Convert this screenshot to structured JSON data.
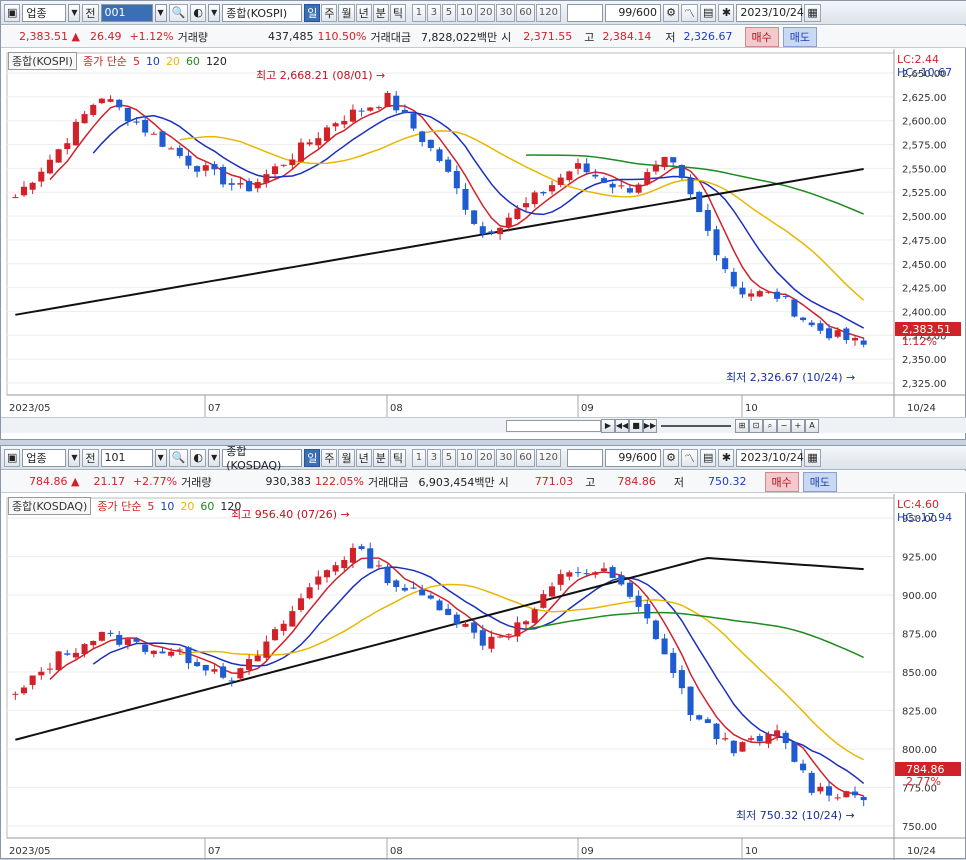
{
  "colors": {
    "up": "#d1222a",
    "down": "#1f5bd1",
    "ma5": "#d1222a",
    "ma10": "#1b2fbf",
    "ma20": "#e8b800",
    "ma60": "#1f8a1f",
    "ma120": "#111111"
  },
  "top": {
    "toolbar": {
      "market_type": "업종",
      "jeon": "전",
      "code": "001",
      "name": "종합(KOSPI)",
      "periods": [
        "일",
        "주",
        "월",
        "년",
        "분",
        "틱"
      ],
      "minutes": [
        "1",
        "3",
        "5",
        "10",
        "20",
        "30",
        "60",
        "120"
      ],
      "count": "99/600",
      "date": "2023/10/24"
    },
    "quote": {
      "price": "2,383.51 ▲",
      "change": "26.49",
      "pct": "+1.12%",
      "vol_label": "거래량",
      "volume": "437,485",
      "vol_pct": "110.50%",
      "amt_label": "거래대금",
      "amount": "7,828,022백만",
      "open_label": "시",
      "open": "2,371.55",
      "high_label": "고",
      "high": "2,384.14",
      "low_label": "저",
      "low": "2,326.67",
      "buy": "매수",
      "sell": "매도"
    },
    "legend": {
      "name": "종합(KOSPI)",
      "desc": "종가 단순",
      "ma": [
        "5",
        "10",
        "20",
        "60",
        "120"
      ]
    },
    "corner": {
      "lc": "LC:2.44",
      "hc": "HC:-10.67"
    },
    "price_label": "2,383.51",
    "pct_label": "1.12%",
    "hi_annot": "최고 2,668.21 (08/01)",
    "lo_annot": "최저 2,326.67 (10/24)",
    "x_labels": [
      "2023/05",
      "07",
      "08",
      "09",
      "10",
      "10/24"
    ],
    "y_ticks": [
      "2,650.00",
      "2,625.00",
      "2,600.00",
      "2,575.00",
      "2,550.00",
      "2,525.00",
      "2,500.00",
      "2,475.00",
      "2,450.00",
      "2,425.00",
      "2,400.00",
      "2,375.00",
      "2,350.00",
      "2,325.00"
    ]
  },
  "bottom": {
    "toolbar": {
      "market_type": "업종",
      "jeon": "전",
      "code": "101",
      "name": "종합(KOSDAQ)",
      "periods": [
        "일",
        "주",
        "월",
        "년",
        "분",
        "틱"
      ],
      "minutes": [
        "1",
        "3",
        "5",
        "10",
        "20",
        "30",
        "60",
        "120"
      ],
      "count": "99/600",
      "date": "2023/10/24"
    },
    "quote": {
      "price": "784.86 ▲",
      "change": "21.17",
      "pct": "+2.77%",
      "vol_label": "거래량",
      "volume": "930,383",
      "vol_pct": "122.05%",
      "amt_label": "거래대금",
      "amount": "6,903,454백만",
      "open_label": "시",
      "open": "771.03",
      "high_label": "고",
      "high": "784.86",
      "low_label": "저",
      "low": "750.32",
      "buy": "매수",
      "sell": "매도"
    },
    "legend": {
      "name": "종합(KOSDAQ)",
      "desc": "종가 단순",
      "ma": [
        "5",
        "10",
        "20",
        "60",
        "120"
      ]
    },
    "corner": {
      "lc": "LC:4.60",
      "hc": "HC:-17.94"
    },
    "price_label": "784.86",
    "pct_label": "2.77%",
    "hi_annot": "최고 956.40 (07/26)",
    "lo_annot": "최저 750.32 (10/24)",
    "x_labels": [
      "2023/05",
      "07",
      "08",
      "09",
      "10",
      "10/24"
    ],
    "y_ticks": [
      "950.00",
      "925.00",
      "900.00",
      "875.00",
      "850.00",
      "825.00",
      "800.00",
      "775.00",
      "750.00"
    ]
  }
}
